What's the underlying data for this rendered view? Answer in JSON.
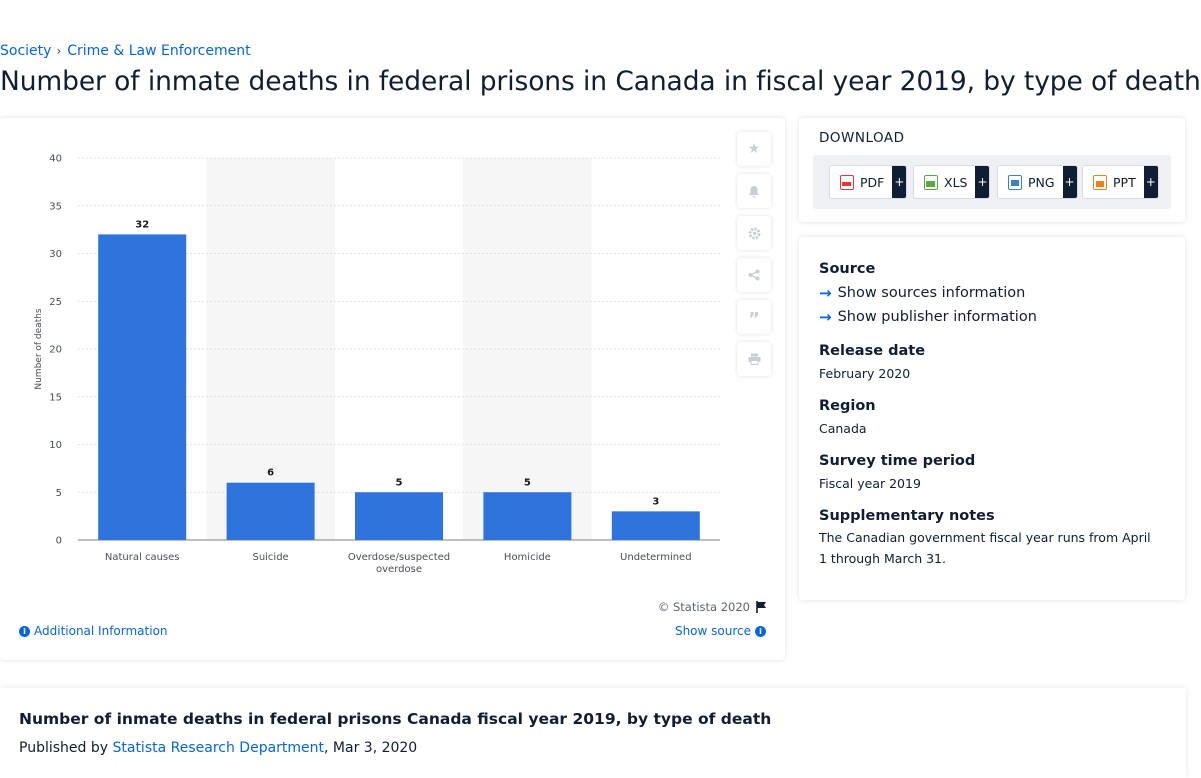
{
  "breadcrumb": {
    "items": [
      {
        "label": "Society"
      },
      {
        "label": "Crime & Law Enforcement"
      }
    ]
  },
  "page_title": "Number of inmate deaths in federal prisons in Canada in fiscal year 2019, by type of death",
  "chart_data": {
    "type": "bar",
    "categories": [
      "Natural causes",
      "Suicide",
      "Overdose/suspected overdose",
      "Homicide",
      "Undetermined"
    ],
    "category_label_lines": [
      [
        "Natural causes"
      ],
      [
        "Suicide"
      ],
      [
        "Overdose/suspected",
        "overdose"
      ],
      [
        "Homicide"
      ],
      [
        "Undetermined"
      ]
    ],
    "values": [
      32,
      6,
      5,
      5,
      3
    ],
    "data_labels": [
      "32",
      "6",
      "5",
      "5",
      "3"
    ],
    "ylabel": "Number of deaths",
    "ylim": [
      0,
      40
    ],
    "yticks": [
      0,
      5,
      10,
      15,
      20,
      25,
      30,
      35,
      40
    ],
    "ytick_labels": [
      "0",
      "5",
      "10",
      "15",
      "20",
      "25",
      "30",
      "35",
      "40"
    ],
    "grid": true,
    "bar_color": "#2f74dc",
    "alt_band_color": "#f6f6f6"
  },
  "chart_footer": {
    "copyright": "© Statista 2020",
    "additional_info": "Additional Information",
    "show_source": "Show source"
  },
  "side_tools": [
    {
      "icon": "star-icon"
    },
    {
      "icon": "bell-icon"
    },
    {
      "icon": "gear-icon"
    },
    {
      "icon": "share-icon"
    },
    {
      "icon": "quote-icon"
    },
    {
      "icon": "print-icon"
    }
  ],
  "download": {
    "title": "DOWNLOAD",
    "buttons": [
      {
        "label": "PDF",
        "icon": "pdf-icon",
        "color": "#e8343a"
      },
      {
        "label": "XLS",
        "icon": "xls-icon",
        "color": "#57a742"
      },
      {
        "label": "PNG",
        "icon": "png-icon",
        "color": "#3b82c4"
      },
      {
        "label": "PPT",
        "icon": "ppt-icon",
        "color": "#ef7f1a"
      }
    ],
    "plus": "+"
  },
  "info": {
    "source_label": "Source",
    "show_sources": "Show sources information",
    "show_publisher": "Show publisher information",
    "release_label": "Release date",
    "release_value": "February 2020",
    "region_label": "Region",
    "region_value": "Canada",
    "survey_label": "Survey time period",
    "survey_value": "Fiscal year 2019",
    "notes_label": "Supplementary notes",
    "notes_value": "The Canadian government fiscal year runs from April 1 through March 31."
  },
  "bottom": {
    "title": "Number of inmate deaths in federal prisons Canada fiscal year 2019, by type of death",
    "published_prefix": "Published by",
    "author": "Statista Research Department",
    "date": ", Mar 3, 2020"
  },
  "colors": {
    "accent": "#0666e5",
    "text": "#0f1e35"
  }
}
